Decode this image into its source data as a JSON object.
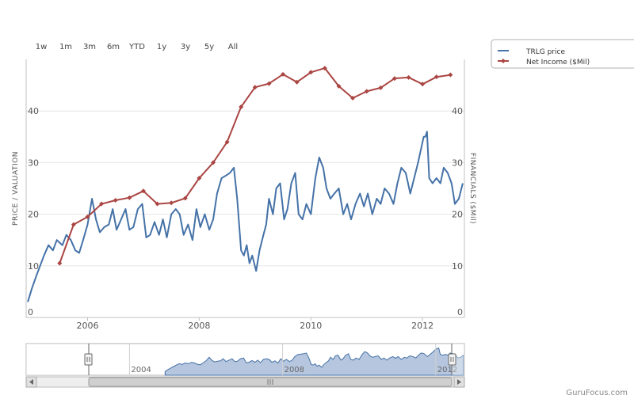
{
  "range_selector": {
    "buttons": [
      "1w",
      "1m",
      "3m",
      "6m",
      "YTD",
      "1y",
      "3y",
      "5y",
      "All"
    ]
  },
  "legend": {
    "items": [
      "TRLG price",
      "Net Income ($Mil)"
    ]
  },
  "watermark": "GuruFocus.com",
  "colors": {
    "price": "#4572a7",
    "net_income": "#aa4643",
    "navigator_fill": "#b6c6de",
    "grid": "#e6e6e6"
  },
  "chart_data": {
    "type": "line",
    "title": "",
    "ylabel_left": "PRICE / VALUATION",
    "ylabel_right": "FINANCIALS ($Mil)",
    "xlim": [
      2004.9,
      2012.75
    ],
    "ylim": [
      0,
      50
    ],
    "x_ticks": [
      "2006",
      "2008",
      "2010",
      "2012"
    ],
    "x_tick_values": [
      2006,
      2008,
      2010,
      2012
    ],
    "y_ticks_left": [
      "0",
      "10",
      "20",
      "30",
      "40"
    ],
    "y_ticks_right": [
      "0",
      "10",
      "20",
      "30",
      "40"
    ],
    "y_tick_values": [
      0,
      10,
      20,
      30,
      40
    ],
    "grid": true,
    "legend_position": "top-right",
    "series": [
      {
        "name": "TRLG price",
        "x": [
          2004.93,
          2005.0,
          2005.08,
          2005.15,
          2005.22,
          2005.3,
          2005.38,
          2005.45,
          2005.55,
          2005.62,
          2005.7,
          2005.78,
          2005.85,
          2005.92,
          2006.0,
          2006.08,
          2006.15,
          2006.22,
          2006.3,
          2006.38,
          2006.45,
          2006.52,
          2006.6,
          2006.68,
          2006.75,
          2006.82,
          2006.9,
          2006.98,
          2007.05,
          2007.12,
          2007.2,
          2007.28,
          2007.35,
          2007.42,
          2007.5,
          2007.58,
          2007.65,
          2007.72,
          2007.8,
          2007.88,
          2007.95,
          2008.02,
          2008.1,
          2008.18,
          2008.25,
          2008.32,
          2008.4,
          2008.48,
          2008.55,
          2008.62,
          2008.68,
          2008.75,
          2008.8,
          2008.85,
          2008.9,
          2008.95,
          2009.02,
          2009.08,
          2009.15,
          2009.2,
          2009.25,
          2009.32,
          2009.38,
          2009.45,
          2009.52,
          2009.58,
          2009.65,
          2009.72,
          2009.78,
          2009.85,
          2009.92,
          2010.0,
          2010.08,
          2010.15,
          2010.22,
          2010.28,
          2010.35,
          2010.42,
          2010.5,
          2010.58,
          2010.65,
          2010.72,
          2010.8,
          2010.88,
          2010.95,
          2011.02,
          2011.1,
          2011.18,
          2011.25,
          2011.32,
          2011.4,
          2011.48,
          2011.55,
          2011.62,
          2011.7,
          2011.78,
          2011.85,
          2011.92,
          2011.98,
          2012.02,
          2012.05,
          2012.08,
          2012.12,
          2012.18,
          2012.25,
          2012.32,
          2012.38,
          2012.45,
          2012.52,
          2012.58,
          2012.65,
          2012.72
        ],
        "y": [
          3,
          5.5,
          8,
          10,
          12,
          14,
          13,
          15,
          14,
          16,
          15,
          13,
          12.5,
          15,
          18,
          23,
          19,
          16.5,
          17.5,
          18,
          21,
          17,
          19,
          21,
          17,
          17.5,
          21,
          22,
          15.5,
          16,
          18.5,
          16,
          19,
          15.5,
          20,
          21,
          20,
          16,
          18,
          15,
          21,
          17.5,
          20,
          17,
          19,
          24,
          27,
          27.5,
          28,
          29,
          23,
          13,
          12,
          14,
          10.5,
          12,
          9,
          13,
          16,
          18,
          23,
          20,
          25,
          26,
          19,
          21,
          26,
          28,
          20,
          19,
          22,
          20,
          27,
          31,
          29,
          25,
          23,
          24,
          25,
          20,
          22,
          19,
          22,
          24,
          21.5,
          24,
          20,
          23,
          22,
          25,
          24,
          22,
          26,
          29,
          28,
          24,
          27,
          30,
          33,
          35,
          35,
          36,
          27,
          26,
          27,
          26,
          29,
          28,
          26,
          22,
          23,
          26
        ]
      },
      {
        "name": "Net Income ($Mil)",
        "x": [
          2005.5,
          2005.75,
          2006.0,
          2006.25,
          2006.5,
          2006.75,
          2007.0,
          2007.25,
          2007.5,
          2007.75,
          2008.0,
          2008.25,
          2008.5,
          2008.75,
          2009.0,
          2009.25,
          2009.5,
          2009.75,
          2010.0,
          2010.25,
          2010.5,
          2010.75,
          2011.0,
          2011.25,
          2011.5,
          2011.75,
          2012.0,
          2012.25,
          2012.5
        ],
        "y": [
          10.5,
          18,
          19.5,
          22,
          22.7,
          23.2,
          24.5,
          22,
          22.2,
          23.1,
          27,
          30,
          34,
          40.8,
          44.6,
          45.3,
          47.1,
          45.6,
          47.5,
          48.3,
          44.8,
          42.5,
          43.8,
          44.5,
          46.3,
          46.5,
          45.2,
          46.6,
          47
        ]
      }
    ],
    "navigator": {
      "x_labels": [
        "2004",
        "2008",
        "2012"
      ],
      "x_label_values": [
        2004,
        2008,
        2012
      ],
      "xlim": [
        2001.3,
        2012.75
      ]
    }
  }
}
